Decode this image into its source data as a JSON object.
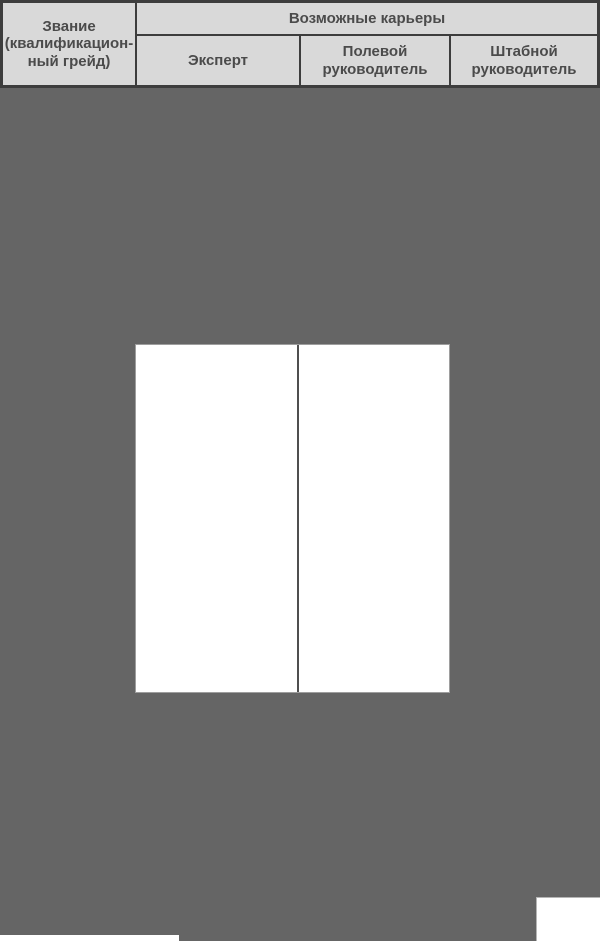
{
  "colors": {
    "page_bg": "#656565",
    "cell_bg": "#d9d9d9",
    "border": "#3d3d3d",
    "text": "#4b4b4b",
    "cell_divider": "#4f4f4f",
    "thin_border": "#9e9e9e",
    "white": "#ffffff"
  },
  "table": {
    "rank_header": "Звание\n(квалификацион-\nный грейд)",
    "careers_header": "Возможные карьеры",
    "columns": [
      {
        "label": "Эксперт"
      },
      {
        "label": "Полевой\nруководитель"
      },
      {
        "label": "Штабной\nруководитель"
      }
    ]
  }
}
